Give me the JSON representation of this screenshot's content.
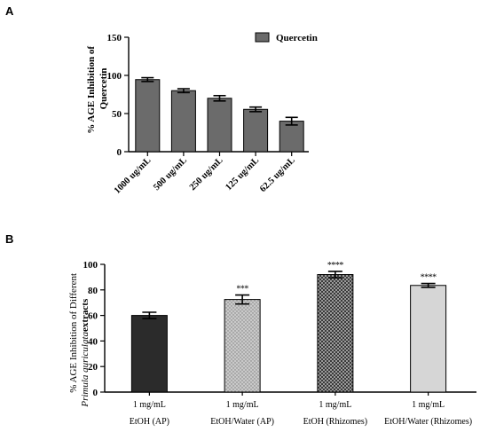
{
  "panels": {
    "a_label": "A",
    "b_label": "B"
  },
  "chart_data": [
    {
      "type": "bar",
      "panel": "A",
      "ylabel_line1": "% AGE Inhibition of",
      "ylabel_line2": "Quercetin",
      "xlabel": "",
      "ylim": [
        0,
        150
      ],
      "yticks": [
        0,
        50,
        100,
        150
      ],
      "categories": [
        "1000 ug/mL",
        "500 ug/mL",
        "250 ug/mL",
        "125 ug/mL",
        "62.5 ug/mL"
      ],
      "series": [
        {
          "name": "Quercetin",
          "values": [
            94.5,
            80,
            70,
            55.5,
            40
          ],
          "errors": [
            2.5,
            2.5,
            3.5,
            3,
            5
          ],
          "color": "#6b6b6b"
        }
      ],
      "legend_position": "top-right",
      "grid": false
    },
    {
      "type": "bar",
      "panel": "B",
      "ylabel_line1": "% AGE Inhibition of Different",
      "ylabel_line2_italic": "Primula auriculata",
      "ylabel_line2_rest": " extracts",
      "ylim": [
        0,
        100
      ],
      "yticks": [
        0,
        20,
        40,
        60,
        80,
        100
      ],
      "categories": [
        "1 mg/mL",
        "1 mg/mL",
        "1 mg/mL",
        "1 mg/mL"
      ],
      "group_labels": [
        "EtOH (AP)",
        "EtOH/Water (AP)",
        "EtOH (Rhizomes)",
        "EtOH/Water (Rhizomes)"
      ],
      "values": [
        60,
        72.5,
        92,
        83.5
      ],
      "errors": [
        2.5,
        3.5,
        2.5,
        1.5
      ],
      "significance": [
        "",
        "***",
        "****",
        "****"
      ],
      "colors": [
        "#2b2b2b",
        "#c2c2c2",
        "#4a4a4a",
        "#d6d6d6"
      ],
      "patterns": [
        "solid",
        "dots",
        "checker",
        "solid"
      ],
      "grid": false
    }
  ]
}
